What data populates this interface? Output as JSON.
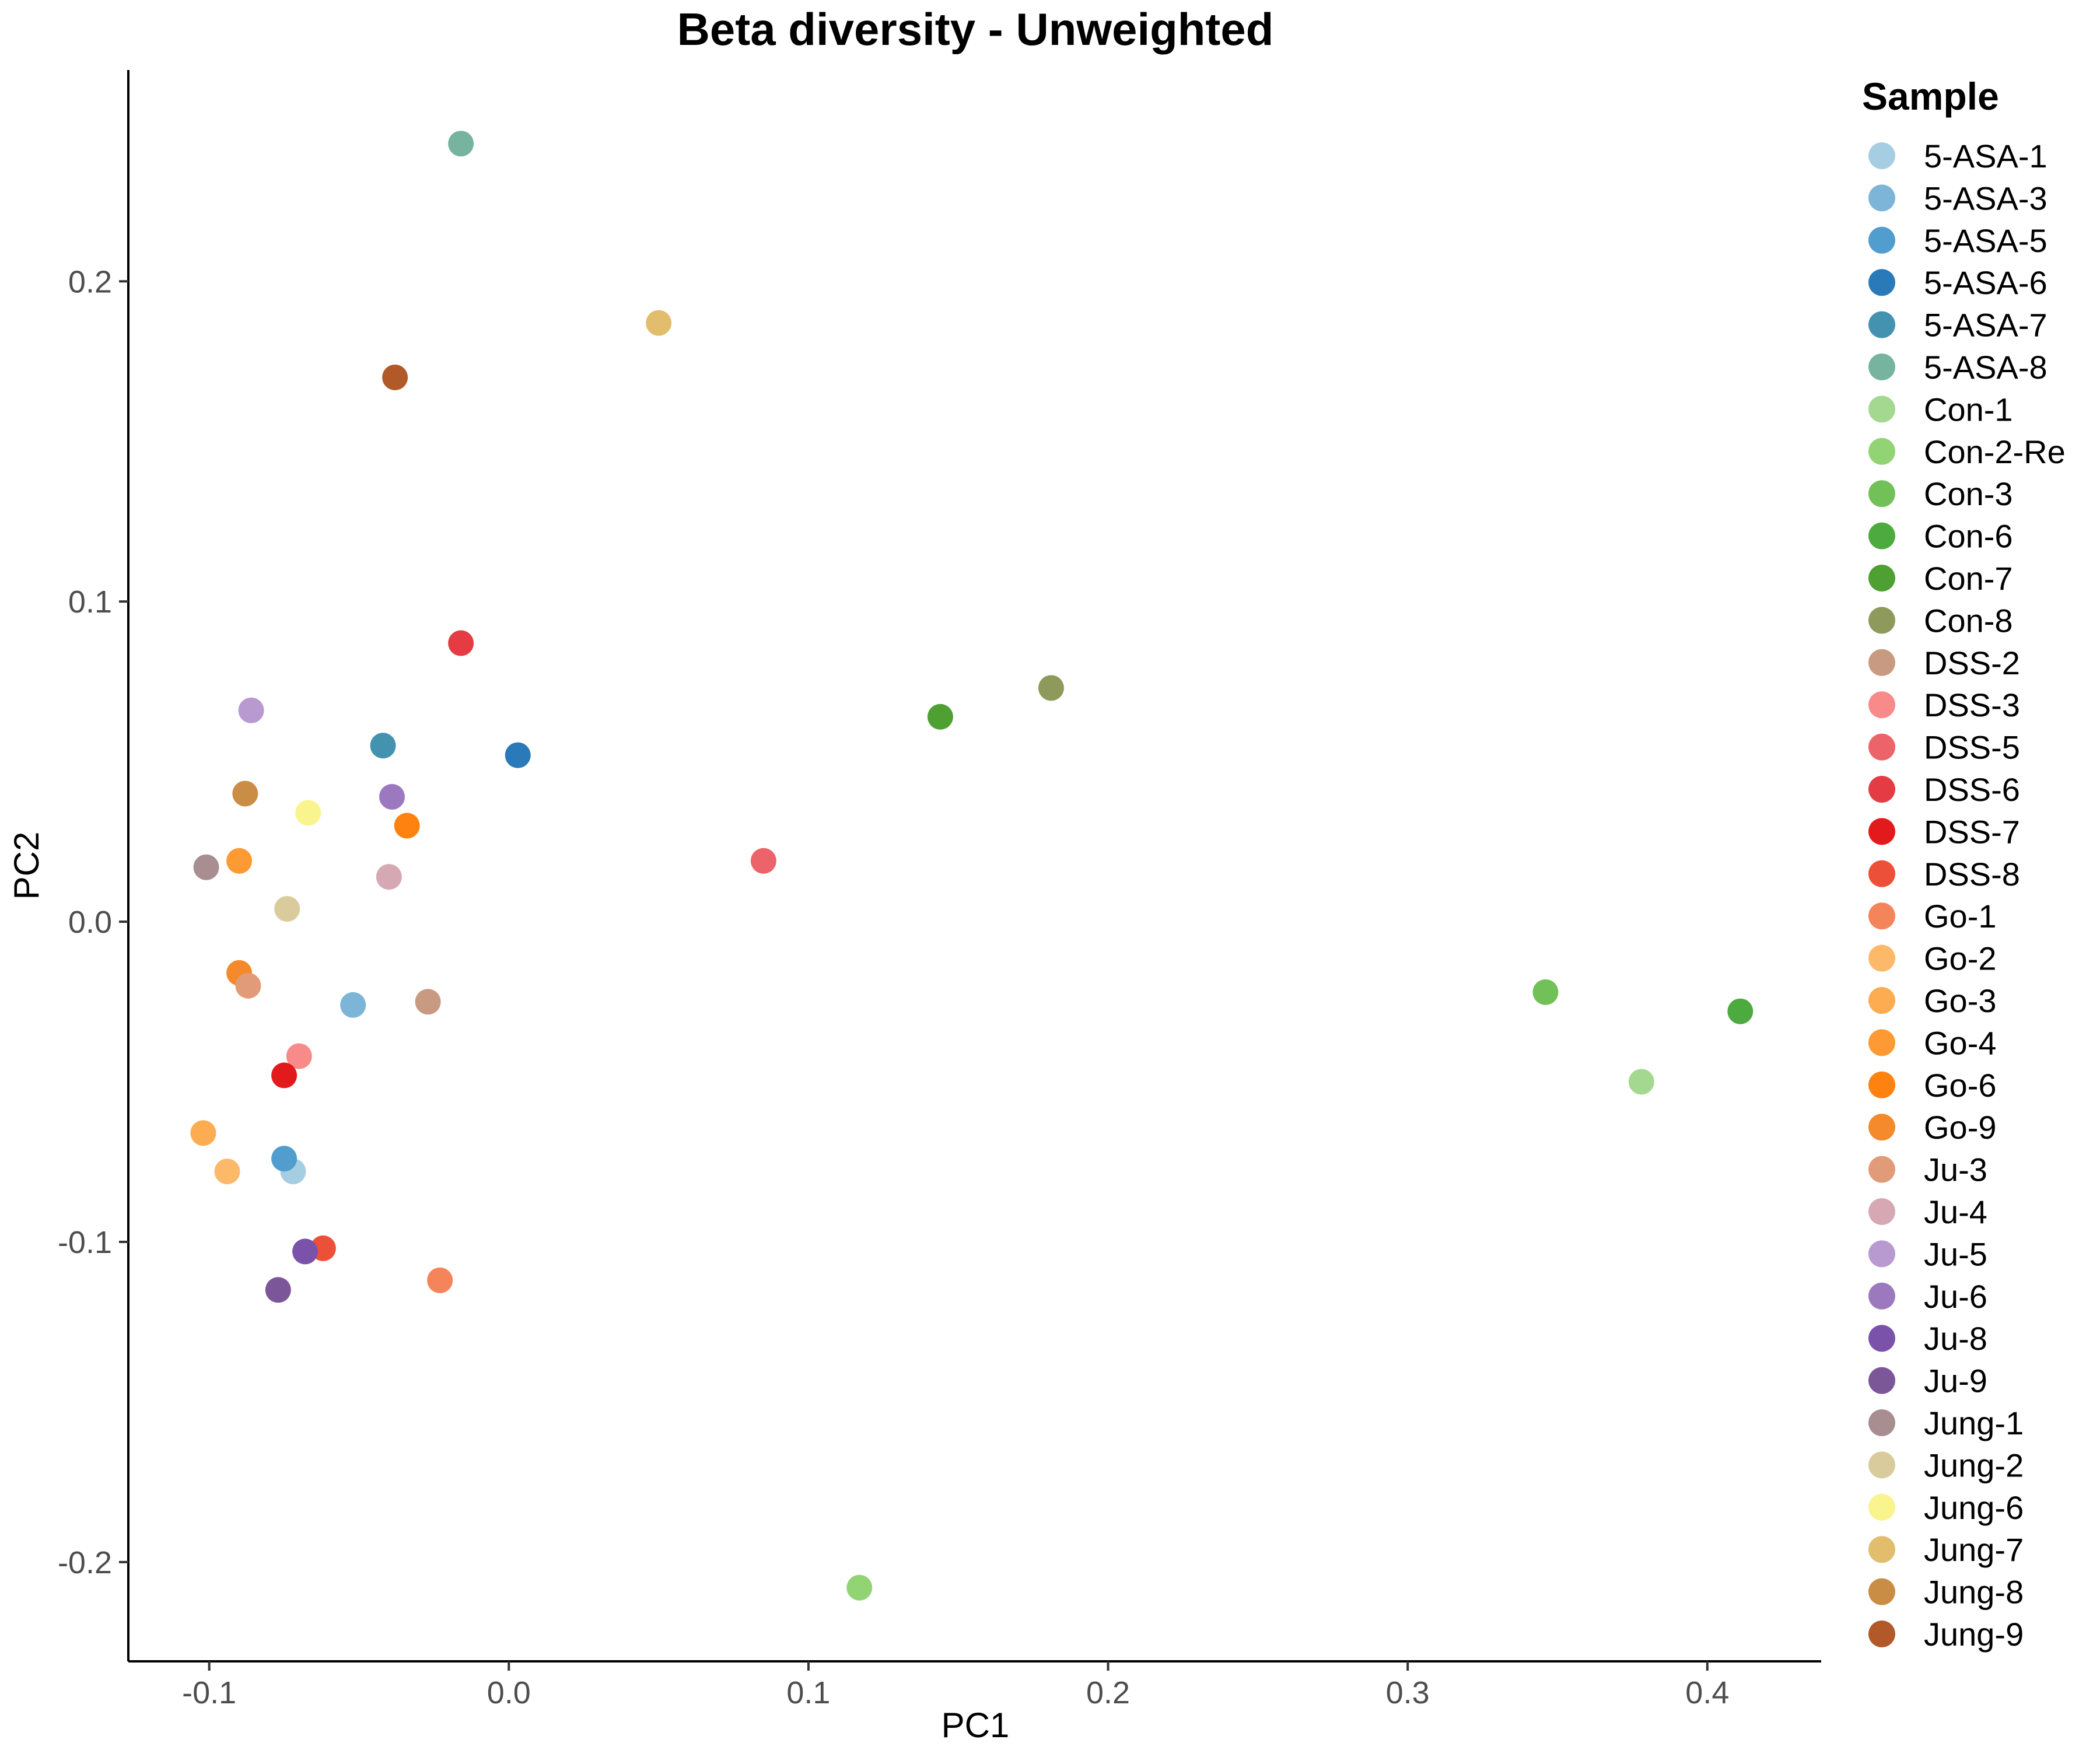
{
  "chart_data": {
    "type": "scatter",
    "title": "Beta diversity - Unweighted",
    "xlabel": "PC1",
    "ylabel": "PC2",
    "xlim": [
      -0.127,
      0.438
    ],
    "ylim": [
      -0.231,
      0.266
    ],
    "xticks": [
      -0.1,
      0.0,
      0.1,
      0.2,
      0.3,
      0.4
    ],
    "yticks": [
      -0.2,
      -0.1,
      0.0,
      0.1,
      0.2
    ],
    "xtick_labels": [
      "-0.1",
      "0.0",
      "0.1",
      "0.2",
      "0.3",
      "0.4"
    ],
    "ytick_labels": [
      "-0.2",
      "-0.1",
      "0.0",
      "0.1",
      "0.2"
    ],
    "grid": false,
    "legend": {
      "title": "Sample",
      "position": "right"
    },
    "series": [
      {
        "name": "5-ASA-1",
        "color": "#a6cee3",
        "x": -0.072,
        "y": -0.078
      },
      {
        "name": "5-ASA-3",
        "color": "#7db5d8",
        "x": -0.052,
        "y": -0.026
      },
      {
        "name": "5-ASA-5",
        "color": "#519dce",
        "x": -0.075,
        "y": -0.074
      },
      {
        "name": "5-ASA-6",
        "color": "#2a7ab9",
        "x": 0.003,
        "y": 0.052
      },
      {
        "name": "5-ASA-7",
        "color": "#4392b0",
        "x": -0.042,
        "y": 0.055
      },
      {
        "name": "5-ASA-8",
        "color": "#76b4a0",
        "x": -0.016,
        "y": 0.243
      },
      {
        "name": "Con-1",
        "color": "#a4d890",
        "x": 0.378,
        "y": -0.05
      },
      {
        "name": "Con-2-Re",
        "color": "#92d374",
        "x": 0.117,
        "y": -0.208
      },
      {
        "name": "Con-3",
        "color": "#72c058",
        "x": 0.346,
        "y": -0.022
      },
      {
        "name": "Con-6",
        "color": "#4daa3e",
        "x": 0.411,
        "y": -0.028
      },
      {
        "name": "Con-7",
        "color": "#4ea033",
        "x": 0.144,
        "y": 0.064
      },
      {
        "name": "Con-8",
        "color": "#8d9a5b",
        "x": 0.181,
        "y": 0.073
      },
      {
        "name": "DSS-2",
        "color": "#c89a82",
        "x": -0.027,
        "y": -0.025
      },
      {
        "name": "DSS-3",
        "color": "#f88a8a",
        "x": -0.07,
        "y": -0.042
      },
      {
        "name": "DSS-5",
        "color": "#ec6469",
        "x": 0.085,
        "y": 0.019
      },
      {
        "name": "DSS-6",
        "color": "#e53c44",
        "x": -0.016,
        "y": 0.087
      },
      {
        "name": "DSS-7",
        "color": "#e31a1c",
        "x": -0.075,
        "y": -0.048
      },
      {
        "name": "DSS-8",
        "color": "#ec5038",
        "x": -0.062,
        "y": -0.102
      },
      {
        "name": "Go-1",
        "color": "#f4845a",
        "x": -0.023,
        "y": -0.112
      },
      {
        "name": "Go-2",
        "color": "#fdb96a",
        "x": -0.094,
        "y": -0.078
      },
      {
        "name": "Go-3",
        "color": "#fdac52",
        "x": -0.102,
        "y": -0.066
      },
      {
        "name": "Go-4",
        "color": "#fd9a34",
        "x": -0.09,
        "y": 0.019
      },
      {
        "name": "Go-6",
        "color": "#fe820f",
        "x": -0.034,
        "y": 0.03
      },
      {
        "name": "Go-9",
        "color": "#f48a2c",
        "x": -0.09,
        "y": -0.016
      },
      {
        "name": "Ju-3",
        "color": "#e29b78",
        "x": -0.087,
        "y": -0.02
      },
      {
        "name": "Ju-4",
        "color": "#d5a8b4",
        "x": -0.04,
        "y": 0.014
      },
      {
        "name": "Ju-5",
        "color": "#b99ad0",
        "x": -0.086,
        "y": 0.066
      },
      {
        "name": "Ju-6",
        "color": "#9c79bf",
        "x": -0.039,
        "y": 0.039
      },
      {
        "name": "Ju-8",
        "color": "#7a52aa",
        "x": -0.068,
        "y": -0.103
      },
      {
        "name": "Ju-9",
        "color": "#7b5699",
        "x": -0.077,
        "y": -0.115
      },
      {
        "name": "Jung-1",
        "color": "#a88d91",
        "x": -0.101,
        "y": 0.017
      },
      {
        "name": "Jung-2",
        "color": "#d9cb9b",
        "x": -0.074,
        "y": 0.004
      },
      {
        "name": "Jung-6",
        "color": "#f9f48e",
        "x": -0.067,
        "y": 0.034
      },
      {
        "name": "Jung-7",
        "color": "#e1bd6d",
        "x": 0.05,
        "y": 0.187
      },
      {
        "name": "Jung-8",
        "color": "#c98d46",
        "x": -0.088,
        "y": 0.04
      },
      {
        "name": "Jung-9",
        "color": "#b15928",
        "x": -0.038,
        "y": 0.17
      }
    ]
  }
}
